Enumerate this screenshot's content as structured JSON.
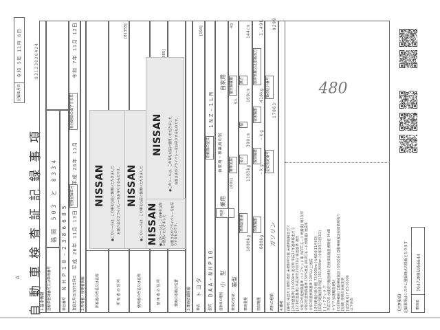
{
  "document": {
    "copy_mark": "A",
    "title": "自動車検査証記録事項",
    "record_date_label": "記録年月日",
    "record_date": "令和 5年 11月 6日",
    "doc_number": "83123026424"
  },
  "basic": {
    "header": "1.基本情報",
    "reg_label": "自動車登録番号又は車両番号",
    "reg_value": "福岡 503 と 8334",
    "chassis_label": "車台番号",
    "chassis_value": "NHP10-2386685",
    "reg_date_label": "登録年月日/交付年月日",
    "reg_date": "平成 26年 11月 13日",
    "first_reg_label": "初度登録年月",
    "first_reg": "平成 26年 11月",
    "expiry_label": "有効期間の満了する日",
    "expiry": "令和 7年 11月 12日"
  },
  "owner": {
    "header": "2.所有者・使用者情報",
    "owner_name_label": "所有者の氏名又は名称",
    "owner_address_label": "所 有 者 の 住 所",
    "user_name_label": "使用者の氏名又は名称",
    "user_address_label": "使 用 者 の 住 所",
    "base_location_label": "使用の本拠の位置",
    "owner_address_code": "[81358]",
    "user_address_code": "[40050 0385]"
  },
  "stickers": [
    {
      "brand": "NISSAN",
      "line1": "●このシールは、この車を以前に使用いただきました",
      "line2": "お客さまのプライバシーをお守りするものです。"
    },
    {
      "brand": "NISSAN",
      "line1": "●このシールは、この車を以前に使用いただきました",
      "line2": "お客さまのプライバシーをお守りするものです。"
    },
    {
      "brand": "NISSAN",
      "line1": "●このシールは、この車を以前に使用いただきました",
      "line2": "お客さまのプライバシーをお守りするものです。"
    },
    {
      "brand": "NISSAN",
      "line1": "●このシールは、この車を以前に使用いただきました",
      "line2": "お客さまのプライバシーをお守りするものです。"
    }
  ],
  "vehicle": {
    "header": "3.車両詳細情報",
    "maker_label": "車名",
    "maker": "トヨタ",
    "maker_code": "[194]",
    "model_label": "型式",
    "model": "DAA-NHP10",
    "engine_label": "原動機の型式",
    "engine": "1NZ-1LM",
    "kind_label": "自動車の種別",
    "kind": "小 型",
    "use_label": "用途",
    "use": "乗用",
    "private_label": "自家用・事業用の別",
    "private": "自家用",
    "body_label": "車体の形状",
    "body": "箱型",
    "body_code": "[001]",
    "capacity_label": "乗車定員",
    "capacity": "5人",
    "max_load_label": "最大積載量",
    "max_load": "-kg",
    "weight_label": "車両重量",
    "weight": "1090kg",
    "gross_weight_label": "車両総重量",
    "gross_weight": "1365kg",
    "length_label": "長さ",
    "length": "399cm",
    "width_label": "幅",
    "width": "169cm",
    "height_label": "高さ",
    "height": "144cm",
    "ff_axle_label": "前前軸重",
    "ff_axle": "680kg",
    "fr_axle_label": "前後軸重",
    "fr_axle": "-kg",
    "rf_axle_label": "後前軸重",
    "rf_axle": "-kg",
    "rr_axle_label": "後後軸重",
    "rr_axle": "410kg",
    "displacement_label": "総排気量又は定格出力",
    "displacement": "1.49L",
    "fuel_label": "燃料の種類",
    "fuel": "ガソリン",
    "type_approval_label": "型式指定番号",
    "type_approval": "17063",
    "category_label": "類別区分番号",
    "category": "0299"
  },
  "remarks": {
    "header": "4.備考",
    "lines": [
      "[備考] 排出ガス規制 適合 未規制平均値 未規制値排出ガス",
      "[26年度基準] 15,000km 走行時 平成17年基準排出ガス",
      "[12.6年度基準] 平成26年10月31日 排出基準 適合",
      "令和12年度燃費基準 ハイブリッド車 (WLTCモード燃費値) 第2次平",
      "令和2年度燃費基準 150%達成 (WLTCモード燃費値) 達成率",
      "令和2年度燃費基準 120%以上達成",
      "[走行距離計表示値] 73,000km (令和5年11月6日)",
      "[旧走行距離計表示値] 192,000km (令和3年11月2日)",
      "[ ] ドアブック 下",
      "平成17年 加速走行騒音規制 近接排気騒音規制値 94dB",
      "ヤマア 加速騒音規制",
      "[交付時検査] 自動車検査証 [交付区分] 自動車検査証記録事項有り",
      "[記録] 使用の本拠変更",
      "[認定番号] F 83-01006",
      "以下余白"
    ]
  },
  "handwritten_note": "480",
  "notice": {
    "title": "【注意事項】",
    "text": "記録事項はシステム登録時点の情報となります"
  },
  "vehicle_id": {
    "label": "車両ID",
    "value": "T9472M9S956644"
  }
}
